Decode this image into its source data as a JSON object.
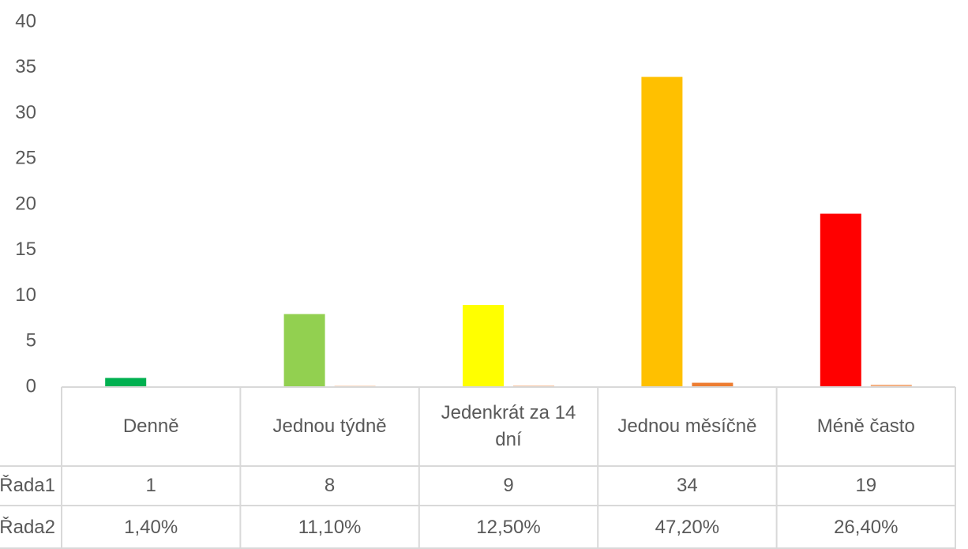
{
  "chart_data": {
    "type": "bar",
    "categories": [
      "Denně",
      "Jednou týdně",
      "Jedenkrát za 14 dní",
      "Jednou měsíčně",
      "Méně často"
    ],
    "series": [
      {
        "name": "Řada1",
        "colors": [
          "#00b050",
          "#92d050",
          "#ffff00",
          "#ffc000",
          "#ff0000"
        ],
        "values": [
          1,
          8,
          9,
          34,
          19
        ]
      },
      {
        "name": "Řada2",
        "colors": [
          "#ed7d31",
          "#ed7d31",
          "#ed7d31",
          "#ed7d31",
          "#f4b183"
        ],
        "values": [
          0.014,
          0.111,
          0.125,
          0.472,
          0.264
        ],
        "value_labels": [
          "1,40%",
          "11,10%",
          "12,50%",
          "47,20%",
          "26,40%"
        ]
      }
    ],
    "ylim": [
      0,
      40
    ],
    "yticks": [
      0,
      5,
      10,
      15,
      20,
      25,
      30,
      35,
      40
    ],
    "data_table": true
  }
}
